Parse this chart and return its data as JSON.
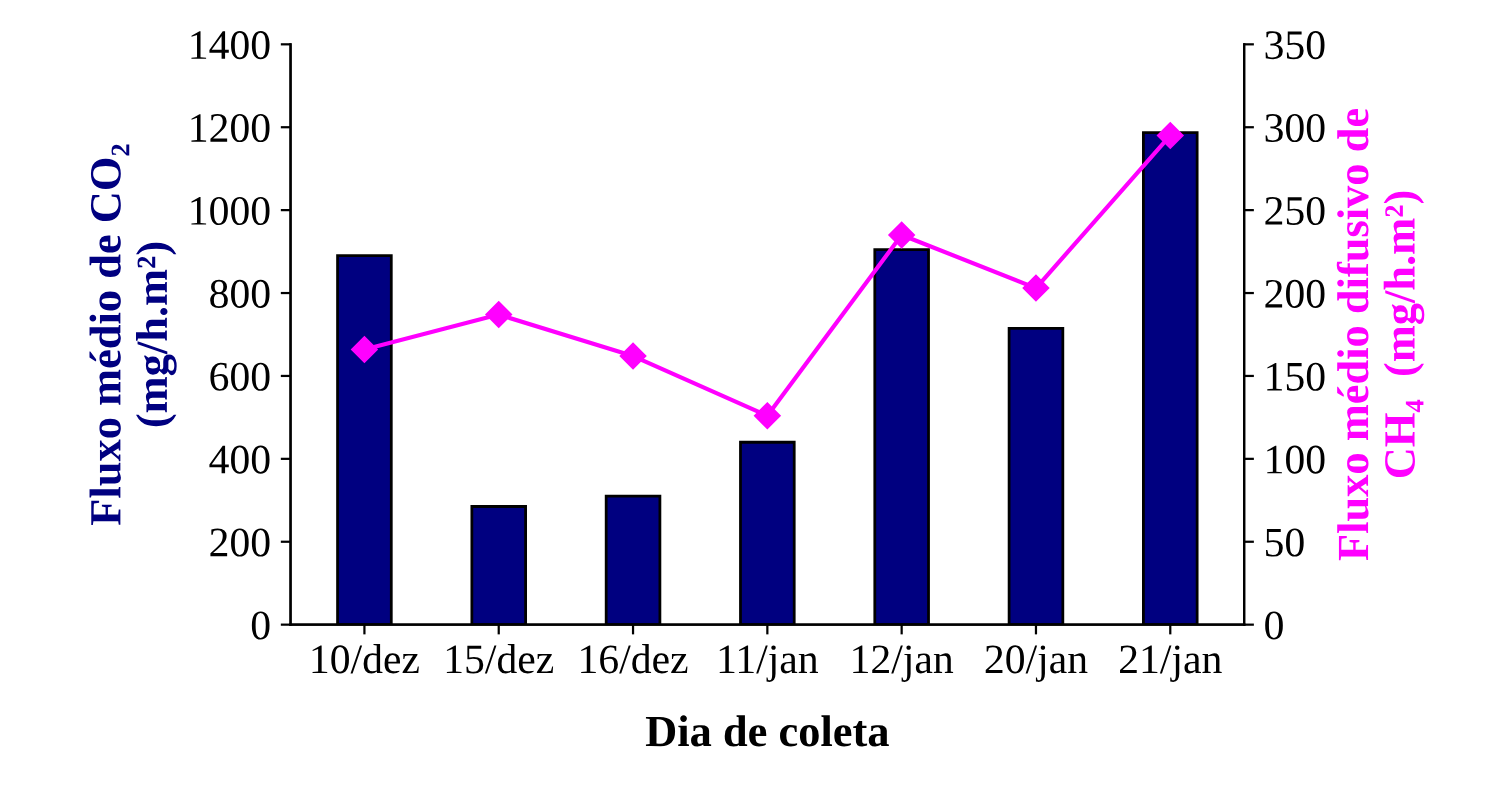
{
  "chart_data": {
    "type": "bar",
    "xlabel": "Dia de coleta",
    "ylabel": "Fluxo médio de CO₂\n(mg/h.m²)",
    "y2label": "Fluxo médio difusivo de\nCH₄  (mg/h.m²)",
    "categories": [
      "10/dez",
      "15/dez",
      "16/dez",
      "11/jan",
      "12/jan",
      "20/jan",
      "21/jan"
    ],
    "series": [
      {
        "color": "#000080",
        "values": [
          890,
          285,
          310,
          440,
          905,
          715,
          1187
        ]
      },
      {
        "type": "line",
        "axis": "y2",
        "color": "#ff00ff",
        "marker": "diamond",
        "values": [
          166,
          187,
          162,
          126,
          235,
          203,
          295
        ]
      }
    ],
    "ylim": [
      0,
      1400
    ],
    "yticks": [
      0,
      200,
      400,
      600,
      800,
      1000,
      1200,
      1400
    ],
    "y2lim": [
      0,
      350
    ],
    "y2ticks": [
      0,
      50,
      100,
      150,
      200,
      250,
      300,
      350
    ],
    "grid": false,
    "legend": false
  }
}
